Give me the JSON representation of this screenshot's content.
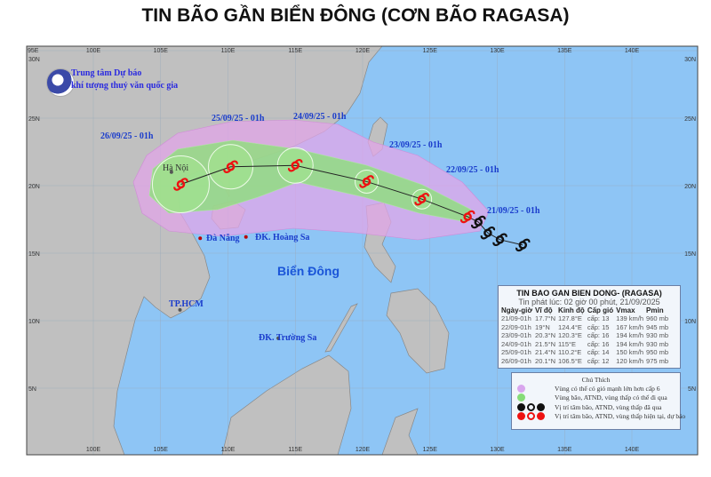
{
  "title": "TIN BÃO GẦN BIỂN ĐÔNG (CƠN BÃO RAGASA)",
  "organization": {
    "line1": "Trung tâm Dự báo",
    "line2": "khí tượng thuỷ văn quốc gia",
    "logo_text": "NCHMF"
  },
  "axes": {
    "lon_labels": [
      "95E",
      "100E",
      "105E",
      "110E",
      "115E",
      "120E",
      "125E",
      "130E",
      "135E",
      "140E"
    ],
    "lon_values": [
      95,
      100,
      105,
      110,
      115,
      120,
      125,
      130,
      135,
      140
    ],
    "lat_labels": [
      "30N",
      "25N",
      "20N",
      "15N",
      "10N",
      "5N"
    ],
    "lat_values": [
      30,
      25,
      20,
      15,
      10,
      5
    ]
  },
  "places": [
    {
      "name": "Hà Nội",
      "lon": 105.8,
      "lat": 21.0
    },
    {
      "name": "Đà Nẵng",
      "lon": 108.2,
      "lat": 16.1
    },
    {
      "name": "ĐK. Hoàng Sa",
      "lon": 111.6,
      "lat": 16.2
    },
    {
      "name": "TP.HCM",
      "lon": 106.7,
      "lat": 10.8
    },
    {
      "name": "ĐK. Trường Sa",
      "lon": 114.0,
      "lat": 8.7
    },
    {
      "name": "Biển Đông",
      "lon": 114.5,
      "lat": 13.5
    }
  ],
  "track_labels": [
    "21/09/25 - 01h",
    "22/09/25 - 01h",
    "23/09/25 - 01h",
    "24/09/25 - 01h",
    "25/09/25 - 01h",
    "26/09/25 - 01h"
  ],
  "past_track": [
    {
      "lon": 131.9,
      "lat": 15.6
    },
    {
      "lon": 130.2,
      "lat": 16.0
    },
    {
      "lon": 129.3,
      "lat": 16.5
    },
    {
      "lon": 128.6,
      "lat": 17.3
    }
  ],
  "info": {
    "title": "TIN BAO GAN BIEN DONG- (RAGASA)",
    "issued": "Tin phát lúc: 02 giờ 00 phút, 21/09/2025",
    "headers": [
      "Ngày-giờ",
      "Vĩ độ",
      "Kinh độ",
      "Cấp gió",
      "Vmax",
      "Pmin"
    ],
    "rows": [
      {
        "time": "21/09-01h",
        "lat_text": "17.7°N",
        "lon_text": "127.8°E",
        "level": "cấp: 13",
        "vmax": "139 km/h",
        "pmin": "960 mb",
        "lat": 17.7,
        "lon": 127.8
      },
      {
        "time": "22/09-01h",
        "lat_text": "19°N",
        "lon_text": "124.4°E",
        "level": "cấp: 15",
        "vmax": "167 km/h",
        "pmin": "945 mb",
        "lat": 19.0,
        "lon": 124.4
      },
      {
        "time": "23/09-01h",
        "lat_text": "20.3°N",
        "lon_text": "120.3°E",
        "level": "cấp: 16",
        "vmax": "194 km/h",
        "pmin": "930 mb",
        "lat": 20.3,
        "lon": 120.3
      },
      {
        "time": "24/09-01h",
        "lat_text": "21.5°N",
        "lon_text": "115°E",
        "level": "cấp: 16",
        "vmax": "194 km/h",
        "pmin": "930 mb",
        "lat": 21.5,
        "lon": 115.0
      },
      {
        "time": "25/09-01h",
        "lat_text": "21.4°N",
        "lon_text": "110.2°E",
        "level": "cấp: 14",
        "vmax": "150 km/h",
        "pmin": "950 mb",
        "lat": 21.4,
        "lon": 110.2
      },
      {
        "time": "26/09-01h",
        "lat_text": "20.1°N",
        "lon_text": "106.5°E",
        "level": "cấp: 12",
        "vmax": "120 km/h",
        "pmin": "975 mb",
        "lat": 20.1,
        "lon": 106.5
      }
    ]
  },
  "legend": {
    "title": "Chú Thích",
    "items": [
      "Vùng có thể có gió mạnh lớn hơn cấp 6",
      "Vùng bão, ATND, vùng thấp có thể đi qua",
      "Vị trí tâm bão, ATND, vùng thấp đã qua",
      "Vị trí tâm bão, ATND, vùng thấp hiện tại, dự báo"
    ]
  },
  "colors": {
    "sea": "#8ec5f5",
    "land": "#c0c0c0",
    "wind_zone": "#e2a6e8",
    "storm_zone": "#8de07a",
    "forecast": "#ee1111",
    "past": "#111111",
    "label": "#1a3ccc"
  }
}
